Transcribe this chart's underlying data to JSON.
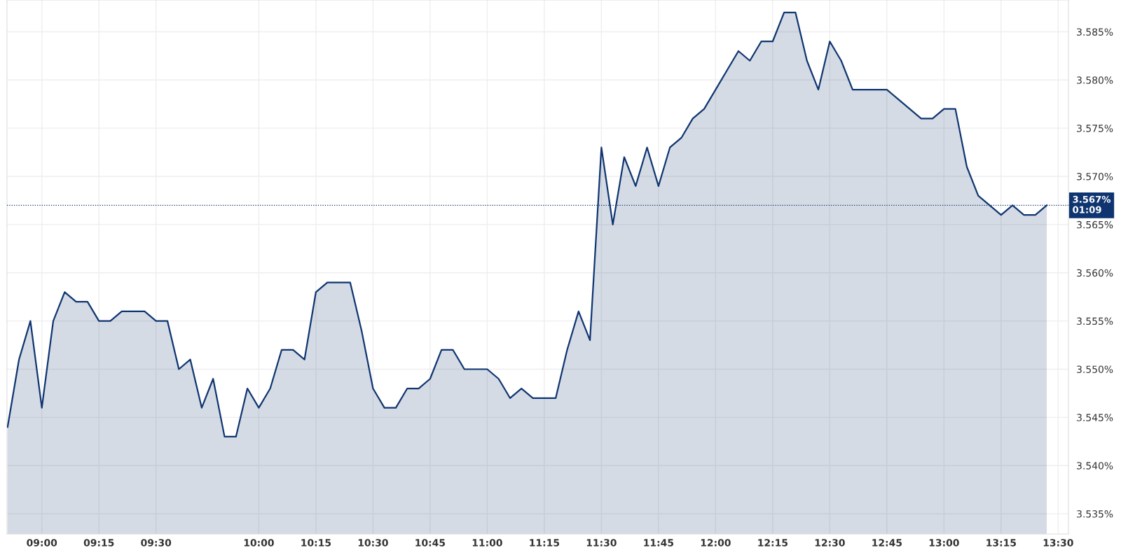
{
  "chart_data": {
    "type": "area",
    "categories": [
      null,
      null,
      null,
      "09:00",
      null,
      null,
      null,
      null,
      "09:15",
      null,
      null,
      null,
      null,
      "09:30",
      null,
      null,
      null,
      null,
      null,
      null,
      null,
      null,
      "10:00",
      null,
      null,
      null,
      null,
      "10:15",
      null,
      null,
      null,
      null,
      "10:30",
      null,
      null,
      null,
      null,
      "10:45",
      null,
      null,
      null,
      null,
      "11:00",
      null,
      null,
      null,
      null,
      "11:15",
      null,
      null,
      null,
      null,
      "11:30",
      null,
      null,
      null,
      null,
      "11:45",
      null,
      null,
      null,
      null,
      "12:00",
      null,
      null,
      null,
      null,
      "12:15",
      null,
      null,
      null,
      null,
      "12:30",
      null,
      null,
      null,
      null,
      "12:45",
      null,
      null,
      null,
      null,
      "13:00",
      null,
      null,
      null,
      null,
      "13:15",
      null,
      null,
      null,
      null,
      "13:30"
    ],
    "series": [
      {
        "color": "#0f3570",
        "values": [
          3.544,
          3.551,
          3.555,
          3.546,
          3.555,
          3.558,
          3.557,
          3.557,
          3.555,
          3.555,
          3.556,
          3.556,
          3.556,
          3.555,
          3.555,
          3.55,
          3.551,
          3.546,
          3.549,
          3.543,
          3.543,
          3.548,
          3.546,
          3.548,
          3.552,
          3.552,
          3.551,
          3.558,
          3.559,
          3.559,
          3.559,
          3.554,
          3.548,
          3.546,
          3.546,
          3.548,
          3.548,
          3.549,
          3.552,
          3.552,
          3.55,
          3.55,
          3.55,
          3.549,
          3.547,
          3.548,
          3.547,
          3.547,
          3.547,
          3.552,
          3.556,
          3.553,
          3.573,
          3.565,
          3.572,
          3.569,
          3.573,
          3.569,
          3.573,
          3.574,
          3.576,
          3.577,
          3.579,
          3.581,
          3.583,
          3.582,
          3.584,
          3.584,
          3.587,
          3.587,
          3.582,
          3.579,
          3.584,
          3.582,
          3.579,
          3.579,
          3.579,
          3.579,
          3.578,
          3.577,
          3.576,
          3.576,
          3.577,
          3.577,
          3.571,
          3.568,
          3.567,
          3.566,
          3.567,
          3.566,
          3.566,
          3.567,
          null
        ]
      }
    ],
    "ylim": [
      3.5329,
      3.5883
    ],
    "yticks": [
      {
        "value": 3.535,
        "label": "3.535%"
      },
      {
        "value": 3.54,
        "label": "3.540%"
      },
      {
        "value": 3.545,
        "label": "3.545%"
      },
      {
        "value": 3.55,
        "label": "3.550%"
      },
      {
        "value": 3.555,
        "label": "3.555%"
      },
      {
        "value": 3.56,
        "label": "3.560%"
      },
      {
        "value": 3.565,
        "label": "3.565%"
      },
      {
        "value": 3.57,
        "label": "3.570%"
      },
      {
        "value": 3.575,
        "label": "3.575%"
      },
      {
        "value": 3.58,
        "label": "3.580%"
      },
      {
        "value": 3.585,
        "label": "3.585%"
      }
    ],
    "ref_lines": [
      {
        "axis": "y",
        "value": 3.567,
        "label": "3.567%\n01:09",
        "color": "#0f3570",
        "line_style": "dotted"
      }
    ],
    "grid": true,
    "marker": "none",
    "line_style": "solid",
    "legend": false
  }
}
